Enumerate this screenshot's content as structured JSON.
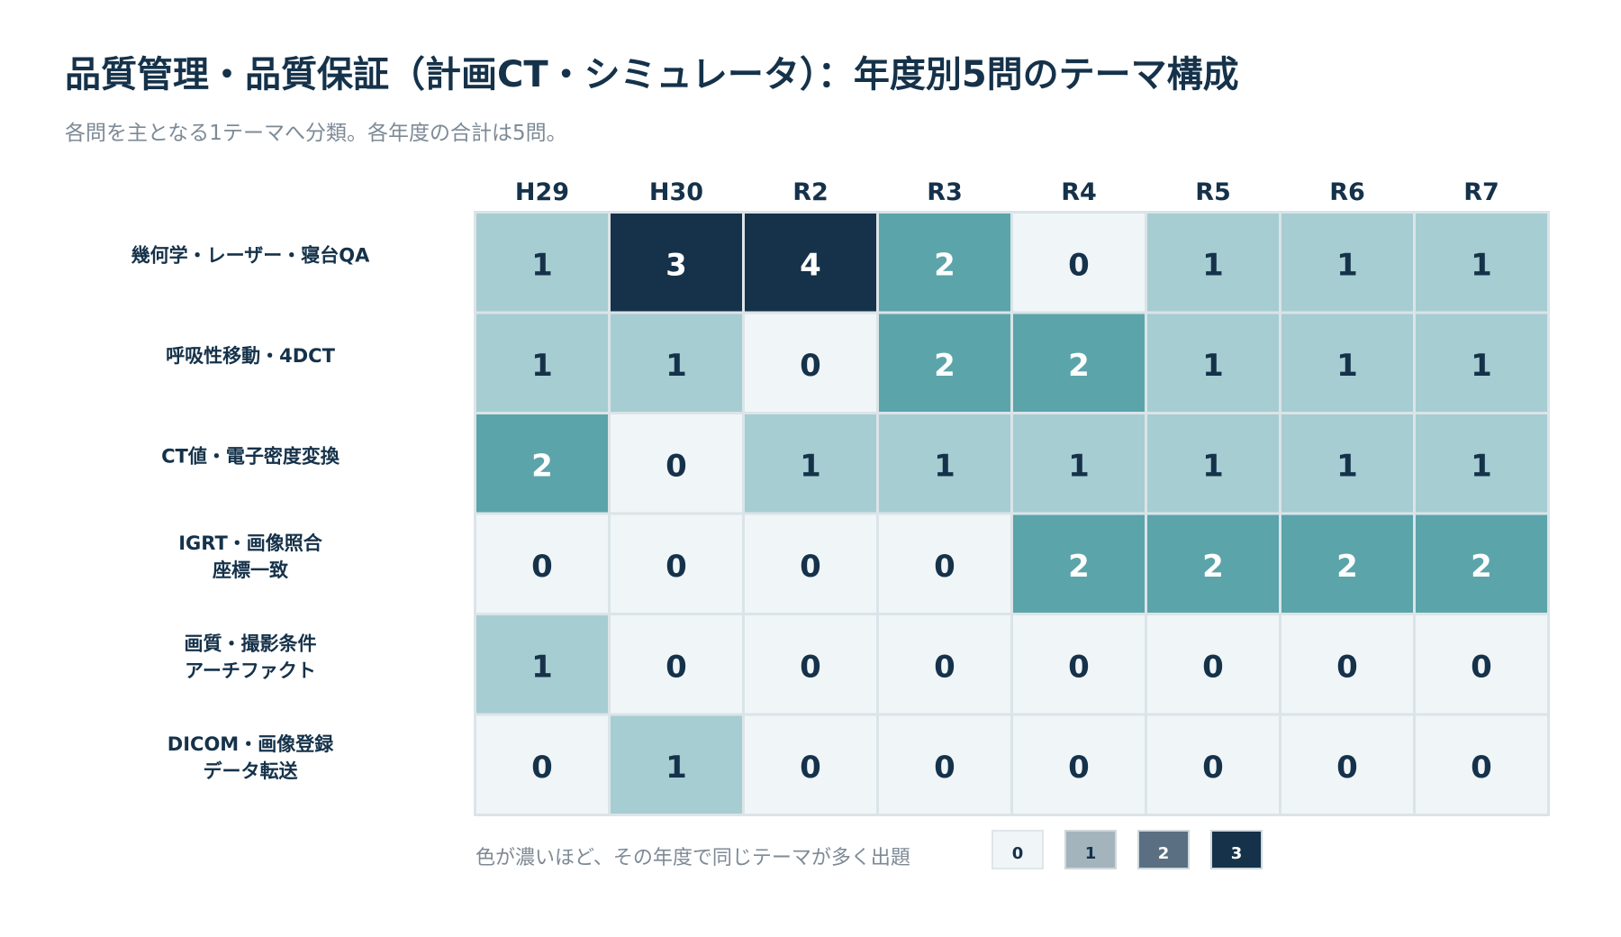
{
  "title": "品質管理・品質保証（計画CT・シミュレータ）：年度別5問のテーマ構成",
  "subtitle": "各問を主となる1テーマへ分類。各年度の合計は5問。",
  "colors": {
    "c0": "#f0f5f8",
    "c1": "#a6cdd2",
    "c2": "#5ba4aa",
    "c3": "#15324a",
    "grid": "#dbe4e8",
    "text_dark": "#15324a",
    "text_light": "#ffffff"
  },
  "chart_data": {
    "type": "heatmap",
    "x": [
      "H29",
      "H30",
      "R2",
      "R3",
      "R4",
      "R5",
      "R6",
      "R7"
    ],
    "rows": [
      {
        "label_lines": [
          "幾何学・レーザー・寝台QA"
        ],
        "values": [
          1,
          3,
          4,
          2,
          0,
          1,
          1,
          1
        ]
      },
      {
        "label_lines": [
          "呼吸性移動・4DCT"
        ],
        "values": [
          1,
          1,
          0,
          2,
          2,
          1,
          1,
          1
        ]
      },
      {
        "label_lines": [
          "CT値・電子密度変換"
        ],
        "values": [
          2,
          0,
          1,
          1,
          1,
          1,
          1,
          1
        ]
      },
      {
        "label_lines": [
          "IGRT・画像照合",
          "座標一致"
        ],
        "values": [
          0,
          0,
          0,
          0,
          2,
          2,
          2,
          2
        ]
      },
      {
        "label_lines": [
          "画質・撮影条件",
          "アーチファクト"
        ],
        "values": [
          1,
          0,
          0,
          0,
          0,
          0,
          0,
          0
        ]
      },
      {
        "label_lines": [
          "DICOM・画像登録",
          "データ転送"
        ],
        "values": [
          0,
          1,
          0,
          0,
          0,
          0,
          0,
          0
        ]
      }
    ]
  },
  "legend": {
    "caption": "色が濃いほど、その年度で同じテーマが多く出題",
    "items": [
      {
        "label": "0",
        "color": "#f0f5f8",
        "text_color": "#15324a"
      },
      {
        "label": "1",
        "color": "#a4b4bd",
        "text_color": "#15324a"
      },
      {
        "label": "2",
        "color": "#5a6f81",
        "text_color": "#ffffff"
      },
      {
        "label": "3",
        "color": "#15324a",
        "text_color": "#ffffff"
      }
    ]
  }
}
